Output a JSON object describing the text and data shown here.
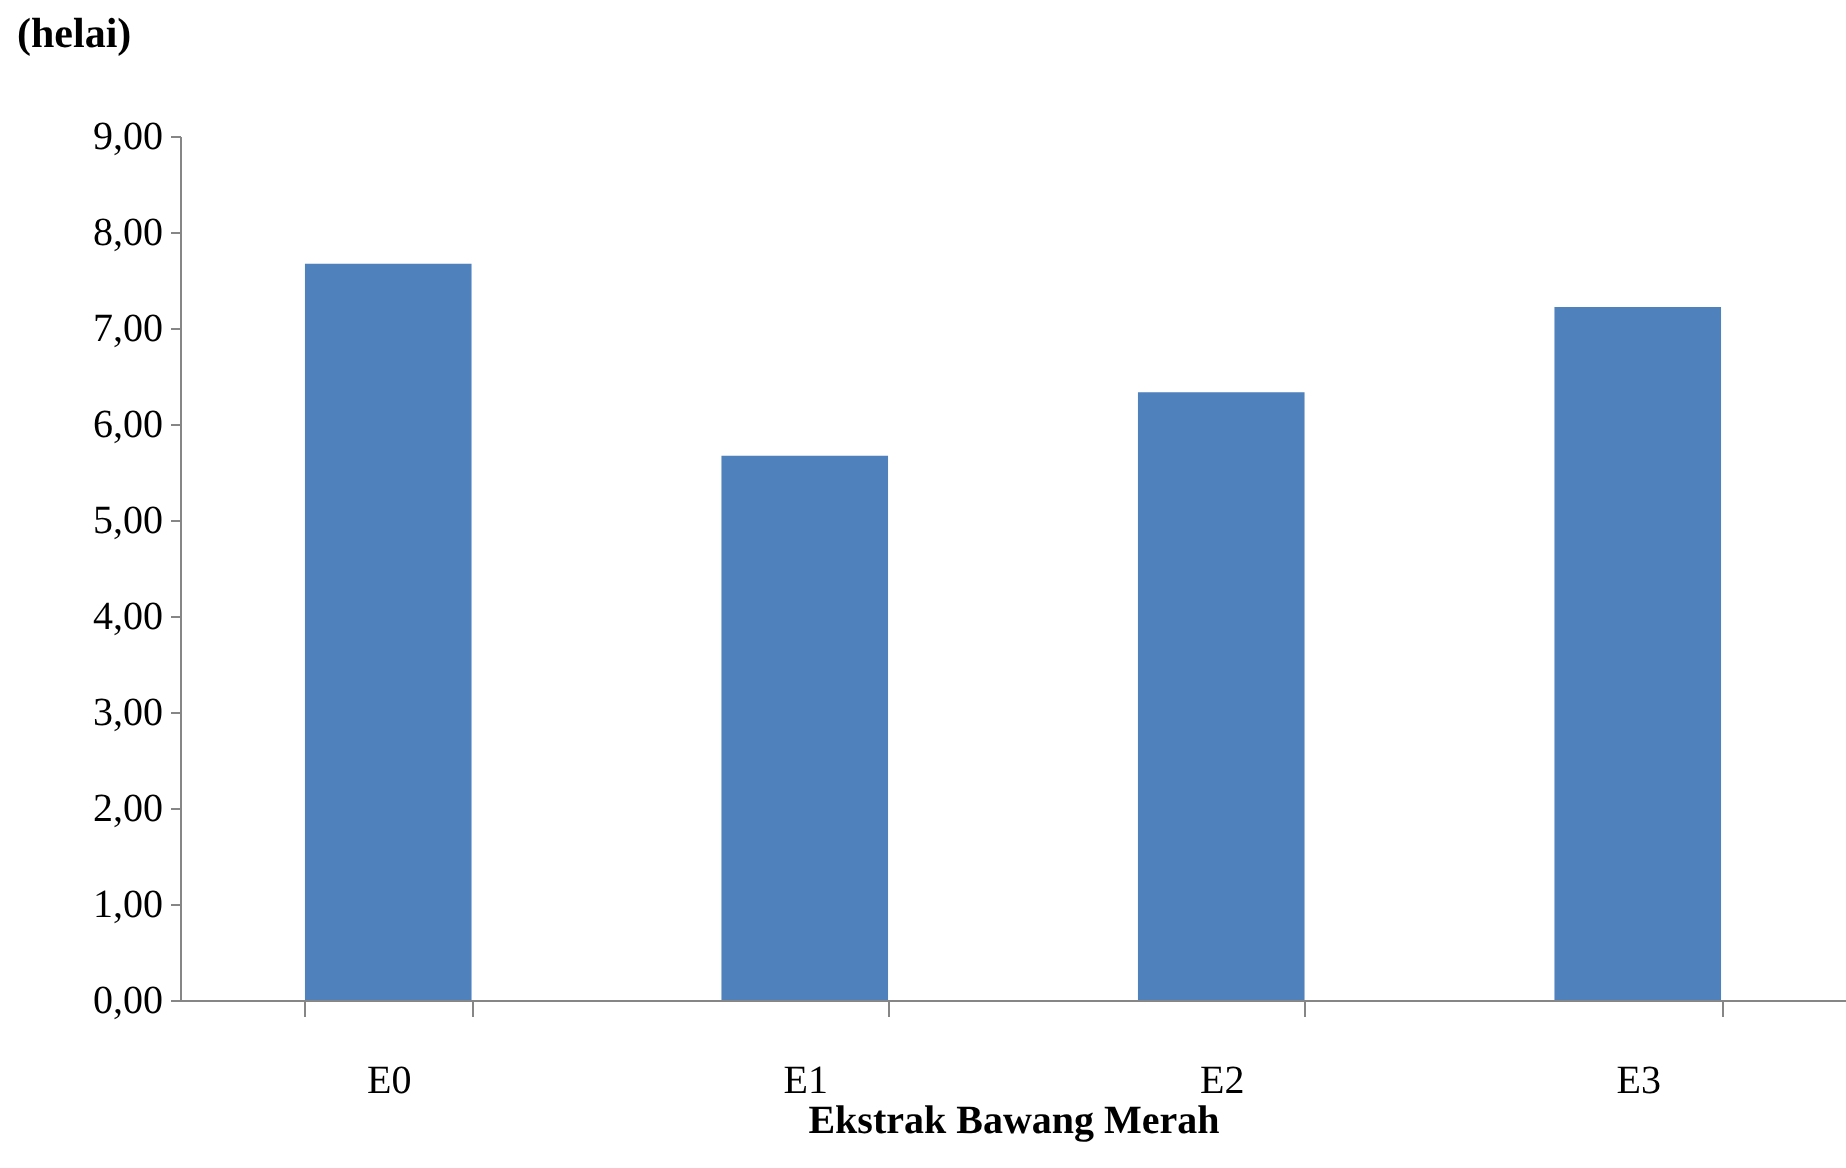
{
  "chart_data": {
    "type": "bar",
    "ylabel": "(helai)",
    "xlabel": "Ekstrak Bawang Merah",
    "categories": [
      "E0",
      "E1",
      "E2",
      "E3"
    ],
    "values": [
      7.67,
      5.67,
      6.33,
      7.22
    ],
    "color": "#4f81bd",
    "ylim": [
      0,
      9
    ],
    "yticks": [
      {
        "value": 0,
        "label": "0,00"
      },
      {
        "value": 1,
        "label": "1,00"
      },
      {
        "value": 2,
        "label": "2,00"
      },
      {
        "value": 3,
        "label": "3,00"
      },
      {
        "value": 4,
        "label": "4,00"
      },
      {
        "value": 5,
        "label": "5,00"
      },
      {
        "value": 6,
        "label": "6,00"
      },
      {
        "value": 7,
        "label": "7,00"
      },
      {
        "value": 8,
        "label": "8,00"
      },
      {
        "value": 9,
        "label": "9,00"
      }
    ],
    "grid": false
  }
}
